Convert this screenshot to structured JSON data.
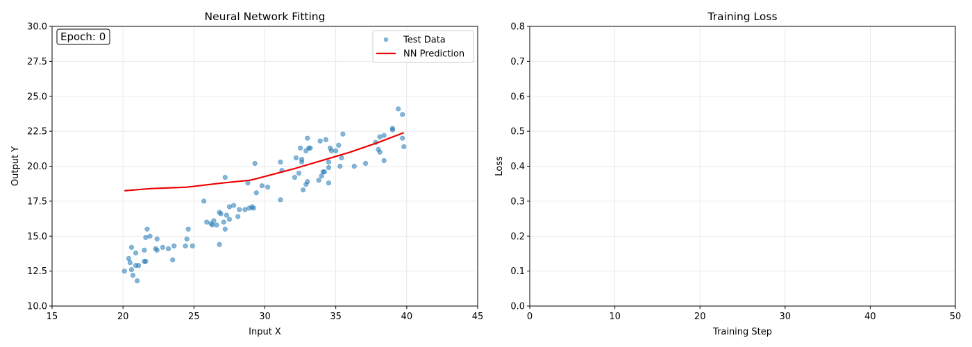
{
  "colors": {
    "scatter": "#1f77b4",
    "prediction": "#ee0000",
    "grid": "#e3e3e3",
    "axis": "#000000"
  },
  "chart_data": [
    {
      "type": "scatter",
      "title": "Neural Network Fitting",
      "xlabel": "Input X",
      "ylabel": "Output Y",
      "xlim": [
        15,
        45
      ],
      "ylim": [
        10,
        30
      ],
      "xticks": [
        "15",
        "20",
        "25",
        "30",
        "35",
        "40",
        "45"
      ],
      "yticks": [
        "10.0",
        "12.5",
        "15.0",
        "17.5",
        "20.0",
        "22.5",
        "25.0",
        "27.5",
        "30.0"
      ],
      "grid": true,
      "legend_position": "top-right",
      "annotation": "Epoch: 0",
      "series": [
        {
          "name": "Test Data",
          "kind": "scatter",
          "points": [
            [
              20.1,
              12.5
            ],
            [
              20.4,
              13.4
            ],
            [
              20.5,
              13.1
            ],
            [
              20.6,
              12.6
            ],
            [
              20.6,
              14.2
            ],
            [
              20.7,
              12.2
            ],
            [
              20.9,
              12.9
            ],
            [
              20.9,
              13.8
            ],
            [
              21.0,
              11.8
            ],
            [
              21.1,
              12.9
            ],
            [
              21.5,
              13.2
            ],
            [
              21.5,
              14.0
            ],
            [
              21.6,
              13.2
            ],
            [
              21.6,
              14.9
            ],
            [
              21.7,
              15.5
            ],
            [
              21.9,
              15.0
            ],
            [
              22.3,
              14.1
            ],
            [
              22.4,
              14.8
            ],
            [
              22.4,
              14.0
            ],
            [
              22.8,
              14.2
            ],
            [
              23.2,
              14.1
            ],
            [
              23.5,
              13.3
            ],
            [
              23.6,
              14.3
            ],
            [
              24.4,
              14.3
            ],
            [
              24.5,
              14.8
            ],
            [
              24.6,
              15.5
            ],
            [
              24.9,
              14.3
            ],
            [
              25.7,
              17.5
            ],
            [
              25.9,
              16.0
            ],
            [
              26.2,
              15.9
            ],
            [
              26.3,
              15.8
            ],
            [
              26.4,
              16.1
            ],
            [
              26.6,
              15.8
            ],
            [
              26.8,
              16.7
            ],
            [
              26.8,
              14.4
            ],
            [
              26.9,
              16.6
            ],
            [
              27.1,
              16.0
            ],
            [
              27.2,
              15.5
            ],
            [
              27.2,
              19.2
            ],
            [
              27.3,
              16.5
            ],
            [
              27.5,
              16.2
            ],
            [
              27.5,
              17.1
            ],
            [
              27.8,
              17.2
            ],
            [
              28.1,
              16.4
            ],
            [
              28.2,
              16.9
            ],
            [
              28.6,
              16.9
            ],
            [
              28.8,
              18.8
            ],
            [
              28.9,
              17.0
            ],
            [
              29.1,
              17.1
            ],
            [
              29.2,
              17.0
            ],
            [
              29.3,
              20.2
            ],
            [
              29.4,
              18.1
            ],
            [
              29.8,
              18.6
            ],
            [
              30.2,
              18.5
            ],
            [
              31.1,
              17.6
            ],
            [
              31.1,
              20.3
            ],
            [
              31.2,
              19.7
            ],
            [
              32.1,
              19.2
            ],
            [
              32.2,
              20.6
            ],
            [
              32.4,
              19.5
            ],
            [
              32.5,
              21.3
            ],
            [
              32.6,
              20.3
            ],
            [
              32.6,
              20.5
            ],
            [
              32.7,
              18.3
            ],
            [
              32.9,
              18.7
            ],
            [
              32.9,
              21.1
            ],
            [
              33.0,
              18.9
            ],
            [
              33.0,
              22.0
            ],
            [
              33.1,
              21.3
            ],
            [
              33.2,
              21.3
            ],
            [
              33.8,
              19.0
            ],
            [
              33.9,
              21.8
            ],
            [
              34.0,
              19.3
            ],
            [
              34.1,
              19.6
            ],
            [
              34.2,
              19.6
            ],
            [
              34.3,
              21.9
            ],
            [
              34.5,
              19.9
            ],
            [
              34.5,
              20.3
            ],
            [
              34.5,
              18.8
            ],
            [
              34.6,
              21.3
            ],
            [
              34.7,
              21.1
            ],
            [
              35.0,
              21.1
            ],
            [
              35.2,
              21.5
            ],
            [
              35.3,
              20.0
            ],
            [
              35.4,
              20.6
            ],
            [
              35.5,
              22.3
            ],
            [
              36.3,
              20.0
            ],
            [
              37.1,
              20.2
            ],
            [
              37.8,
              21.7
            ],
            [
              38.0,
              21.2
            ],
            [
              38.1,
              21.0
            ],
            [
              38.1,
              22.1
            ],
            [
              38.4,
              22.2
            ],
            [
              38.4,
              20.4
            ],
            [
              39.0,
              22.6
            ],
            [
              39.0,
              22.7
            ],
            [
              39.4,
              24.1
            ],
            [
              39.7,
              23.7
            ],
            [
              39.7,
              22.0
            ],
            [
              39.8,
              21.4
            ]
          ]
        },
        {
          "name": "NN Prediction",
          "kind": "line",
          "points": [
            [
              20.1,
              18.25
            ],
            [
              22.0,
              18.4
            ],
            [
              24.5,
              18.5
            ],
            [
              27.0,
              18.8
            ],
            [
              29.0,
              19.0
            ],
            [
              30.5,
              19.4
            ],
            [
              32.0,
              19.8
            ],
            [
              34.0,
              20.4
            ],
            [
              36.0,
              21.0
            ],
            [
              38.0,
              21.7
            ],
            [
              39.8,
              22.4
            ]
          ]
        }
      ]
    },
    {
      "type": "line",
      "title": "Training Loss",
      "xlabel": "Training Step",
      "ylabel": "Loss",
      "xlim": [
        0,
        50
      ],
      "ylim": [
        0,
        0.8
      ],
      "xticks": [
        "0",
        "10",
        "20",
        "30",
        "40",
        "50"
      ],
      "yticks": [
        "0.0",
        "0.1",
        "0.2",
        "0.3",
        "0.4",
        "0.5",
        "0.6",
        "0.7",
        "0.8"
      ],
      "grid": true,
      "series": []
    }
  ]
}
